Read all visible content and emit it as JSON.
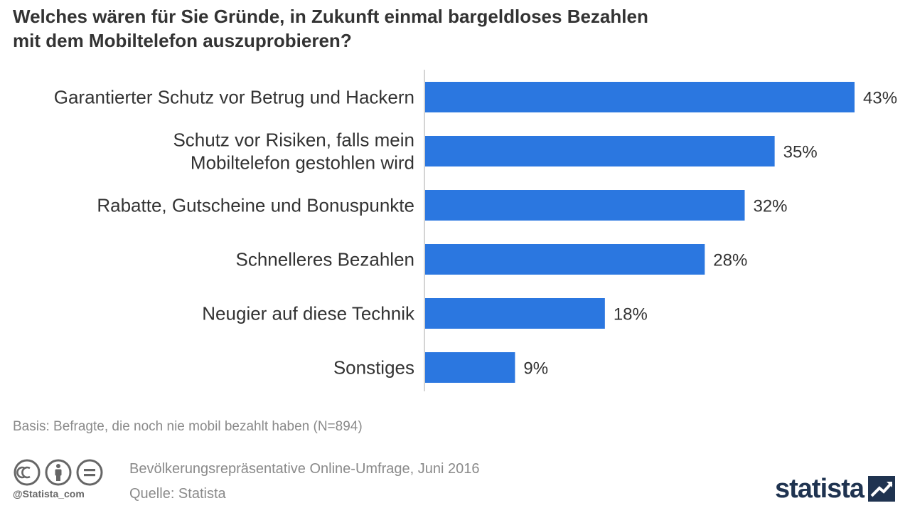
{
  "title": {
    "line1": "Welches wären für Sie Gründe, in Zukunft einmal bargeldloses Bezahlen",
    "line2": "mit dem Mobiltelefon auszuprobieren?"
  },
  "chart_data": {
    "type": "bar",
    "orientation": "horizontal",
    "categories": [
      [
        "Garantierter Schutz vor Betrug und Hackern"
      ],
      [
        "Schutz vor Risiken, falls mein",
        "Mobiltelefon gestohlen wird"
      ],
      [
        "Rabatte, Gutscheine und Bonuspunkte"
      ],
      [
        "Schnelleres Bezahlen"
      ],
      [
        "Neugier auf diese Technik"
      ],
      [
        "Sonstiges"
      ]
    ],
    "values": [
      43,
      35,
      32,
      28,
      18,
      9
    ],
    "value_labels": [
      "43%",
      "35%",
      "32%",
      "28%",
      "18%",
      "9%"
    ],
    "xlim": [
      0,
      43
    ],
    "grid": false,
    "bar_color": "#2b77e0"
  },
  "footer": {
    "basis": "Basis: Befragte, die noch nie mobil bezahlt haben (N=894)",
    "survey": "Bevölkerungsrepräsentative Online-Umfrage, Juni 2016",
    "source": "Quelle: Statista",
    "cc_handle": "@Statista_com",
    "logo_text": "statista",
    "cc_icons": [
      "cc-icon",
      "by-icon",
      "nd-icon"
    ]
  }
}
